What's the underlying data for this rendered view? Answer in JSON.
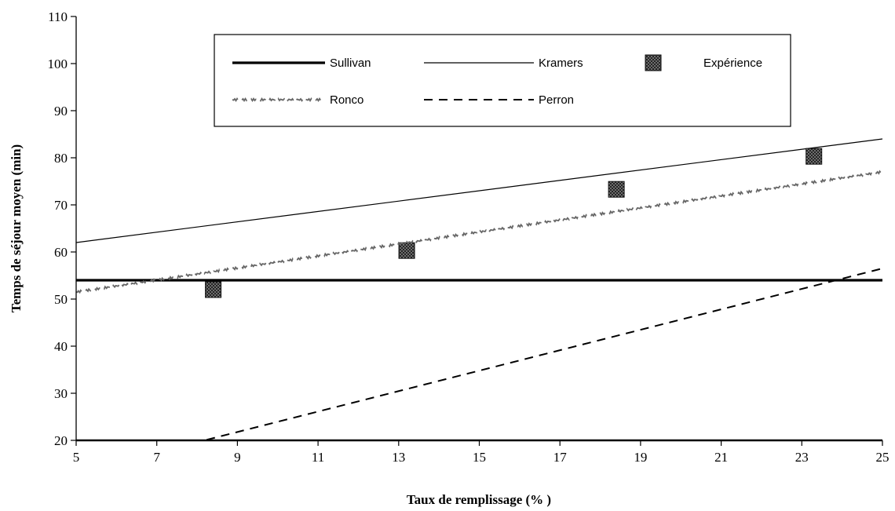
{
  "chart_data": {
    "type": "line",
    "title": "",
    "xlabel": "Taux de remplissage (% )",
    "ylabel": "Temps de séjour moyen (min)",
    "xlim": [
      5,
      25
    ],
    "ylim": [
      20,
      110
    ],
    "xticks": [
      5,
      7,
      9,
      11,
      13,
      15,
      17,
      19,
      21,
      23,
      25
    ],
    "yticks": [
      20,
      30,
      40,
      50,
      60,
      70,
      80,
      90,
      100,
      110
    ],
    "grid": false,
    "legend_position": "top",
    "series": [
      {
        "name": "Sullivan",
        "style": "thick-solid",
        "color": "#000000",
        "x": [
          5,
          25
        ],
        "y": [
          54,
          54
        ]
      },
      {
        "name": "Kramers",
        "style": "thin-solid",
        "color": "#000000",
        "x": [
          5,
          25
        ],
        "y": [
          62,
          84
        ]
      },
      {
        "name": "Expérience",
        "style": "marker-square",
        "color": "#444444",
        "x": [
          8.4,
          13.2,
          18.4,
          23.3
        ],
        "y": [
          52,
          60.3,
          73.3,
          80.3
        ]
      },
      {
        "name": "Ronco",
        "style": "wavy-dashed",
        "color": "#666666",
        "x": [
          5,
          25
        ],
        "y": [
          51.5,
          77
        ]
      },
      {
        "name": "Perron",
        "style": "dashed",
        "color": "#000000",
        "x": [
          6.8,
          25
        ],
        "y": [
          17,
          56.5
        ]
      }
    ]
  }
}
